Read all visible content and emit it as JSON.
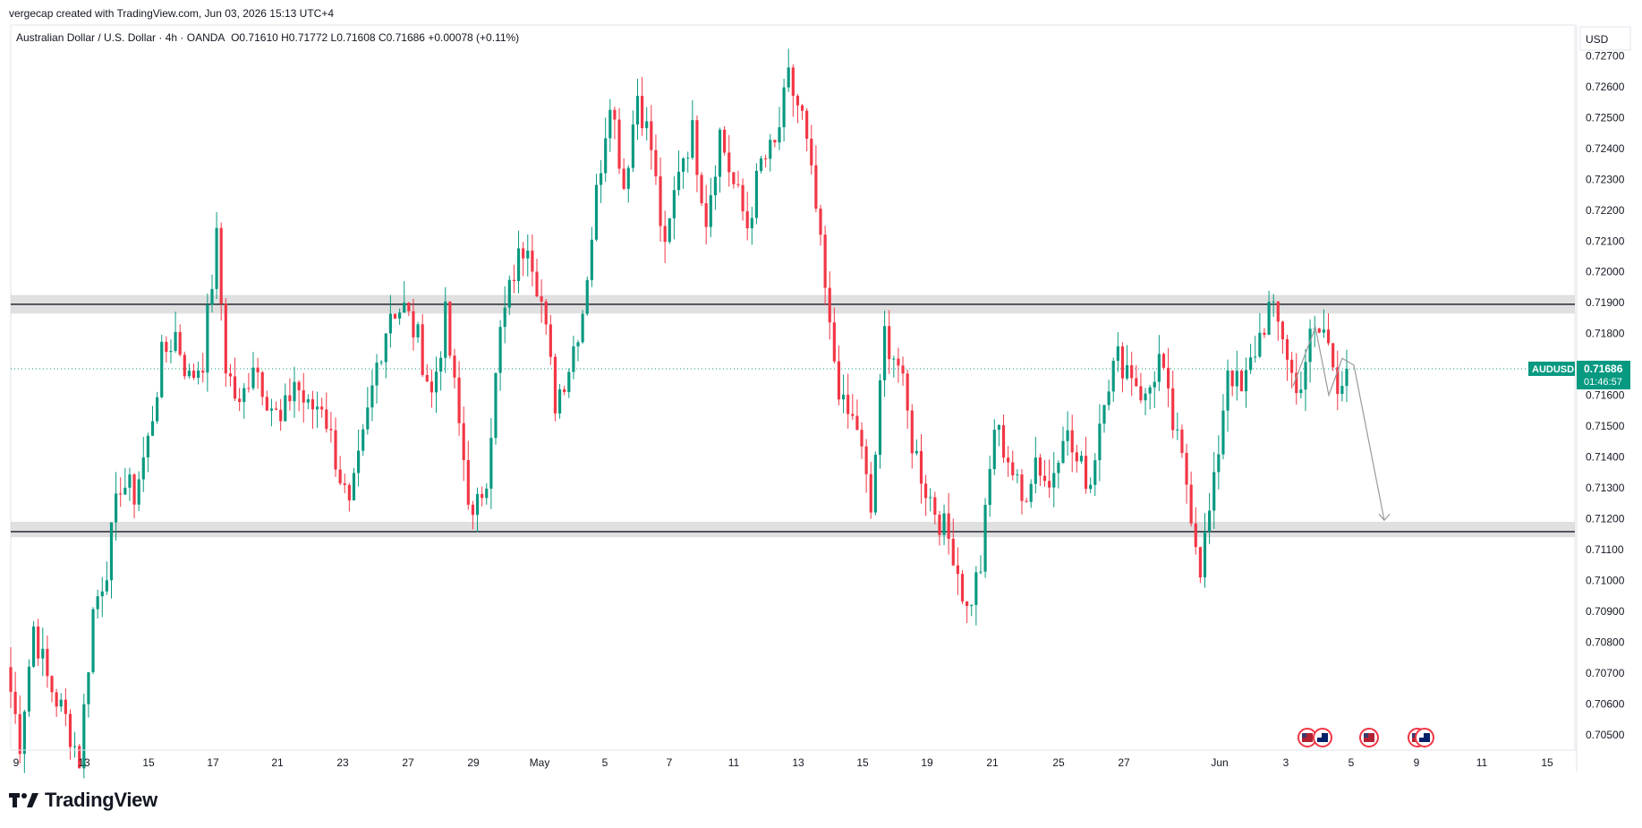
{
  "attribution": "vergecap created with TradingView.com, Jun 03, 2026 15:13 UTC+4",
  "legend": {
    "symbol_desc": "Australian Dollar / U.S. Dollar · 4h · OANDA",
    "open": "O0.71610",
    "high": "H0.71772",
    "low": "L0.71608",
    "close": "C0.71686",
    "change": "+0.00078 (+0.11%)"
  },
  "currency": "USD",
  "price_tag": {
    "symbol": "AUDUSD",
    "price": "0.71686",
    "countdown": "01:46:57"
  },
  "brand": {
    "name": "TradingView",
    "logo_text": "TV"
  },
  "colors": {
    "up": "#089981",
    "down": "#F23645",
    "zone": "#d5d5d5",
    "tag": "#089981",
    "drawing": "#9a9a9a"
  },
  "chart_data": {
    "type": "candlestick",
    "symbol": "AUDUSD",
    "timeframe": "4h",
    "ylim": [
      0.7045,
      0.728
    ],
    "y_ticks": [
      "0.72700",
      "0.72600",
      "0.72500",
      "0.72400",
      "0.72300",
      "0.72200",
      "0.72100",
      "0.72000",
      "0.71900",
      "0.71800",
      "0.71600",
      "0.71500",
      "0.71400",
      "0.71300",
      "0.71200",
      "0.71100",
      "0.71000",
      "0.70900",
      "0.70800",
      "0.70700",
      "0.70600",
      "0.70500"
    ],
    "x_ticks": [
      "9",
      "13",
      "15",
      "17",
      "21",
      "23",
      "27",
      "29",
      "May",
      "5",
      "7",
      "11",
      "13",
      "15",
      "19",
      "21",
      "25",
      "27",
      "Jun",
      "3",
      "5",
      "9",
      "11",
      "15"
    ],
    "zones": [
      {
        "low": 0.71865,
        "high": 0.71925,
        "line": 0.71895
      },
      {
        "low": 0.7114,
        "high": 0.7119,
        "line": 0.71158
      }
    ],
    "last_price": 0.71686,
    "anchors": [
      [
        0,
        0.7064
      ],
      [
        2,
        0.7048
      ],
      [
        5,
        0.7085
      ],
      [
        8,
        0.7068
      ],
      [
        12,
        0.7055
      ],
      [
        15,
        0.7042
      ],
      [
        18,
        0.709
      ],
      [
        21,
        0.7105
      ],
      [
        24,
        0.7132
      ],
      [
        27,
        0.7128
      ],
      [
        30,
        0.7145
      ],
      [
        33,
        0.7172
      ],
      [
        36,
        0.718
      ],
      [
        39,
        0.7165
      ],
      [
        42,
        0.7172
      ],
      [
        45,
        0.721
      ],
      [
        47,
        0.717
      ],
      [
        50,
        0.7155
      ],
      [
        53,
        0.7172
      ],
      [
        56,
        0.716
      ],
      [
        59,
        0.715
      ],
      [
        62,
        0.7165
      ],
      [
        65,
        0.7155
      ],
      [
        68,
        0.7158
      ],
      [
        71,
        0.714
      ],
      [
        74,
        0.7122
      ],
      [
        77,
        0.7145
      ],
      [
        80,
        0.717
      ],
      [
        83,
        0.7188
      ],
      [
        86,
        0.7188
      ],
      [
        89,
        0.7178
      ],
      [
        92,
        0.716
      ],
      [
        95,
        0.7185
      ],
      [
        98,
        0.715
      ],
      [
        101,
        0.7118
      ],
      [
        104,
        0.7135
      ],
      [
        107,
        0.718
      ],
      [
        110,
        0.72
      ],
      [
        113,
        0.7212
      ],
      [
        116,
        0.719
      ],
      [
        119,
        0.7158
      ],
      [
        122,
        0.717
      ],
      [
        125,
        0.7188
      ],
      [
        128,
        0.7225
      ],
      [
        131,
        0.7258
      ],
      [
        134,
        0.7228
      ],
      [
        137,
        0.7258
      ],
      [
        140,
        0.724
      ],
      [
        143,
        0.7205
      ],
      [
        146,
        0.7235
      ],
      [
        149,
        0.7245
      ],
      [
        152,
        0.7218
      ],
      [
        155,
        0.7245
      ],
      [
        158,
        0.7228
      ],
      [
        161,
        0.7215
      ],
      [
        164,
        0.7235
      ],
      [
        167,
        0.724
      ],
      [
        170,
        0.7262
      ],
      [
        173,
        0.725
      ],
      [
        176,
        0.722
      ],
      [
        179,
        0.718
      ],
      [
        182,
        0.7155
      ],
      [
        185,
        0.715
      ],
      [
        188,
        0.7122
      ],
      [
        191,
        0.718
      ],
      [
        194,
        0.717
      ],
      [
        197,
        0.7145
      ],
      [
        200,
        0.713
      ],
      [
        203,
        0.712
      ],
      [
        206,
        0.711
      ],
      [
        209,
        0.709
      ],
      [
        212,
        0.7105
      ],
      [
        215,
        0.715
      ],
      [
        218,
        0.714
      ],
      [
        221,
        0.7125
      ],
      [
        224,
        0.714
      ],
      [
        227,
        0.713
      ],
      [
        230,
        0.715
      ],
      [
        233,
        0.7138
      ],
      [
        236,
        0.7132
      ],
      [
        239,
        0.7162
      ],
      [
        242,
        0.7172
      ],
      [
        245,
        0.7168
      ],
      [
        248,
        0.7158
      ],
      [
        251,
        0.7172
      ],
      [
        254,
        0.715
      ],
      [
        257,
        0.7132
      ],
      [
        260,
        0.7105
      ],
      [
        263,
        0.713
      ],
      [
        266,
        0.717
      ],
      [
        269,
        0.716
      ],
      [
        272,
        0.7175
      ],
      [
        275,
        0.7188
      ],
      [
        278,
        0.718
      ],
      [
        281,
        0.716
      ],
      [
        284,
        0.7178
      ],
      [
        287,
        0.7181
      ],
      [
        290,
        0.7165
      ],
      [
        292,
        0.7169
      ]
    ]
  }
}
